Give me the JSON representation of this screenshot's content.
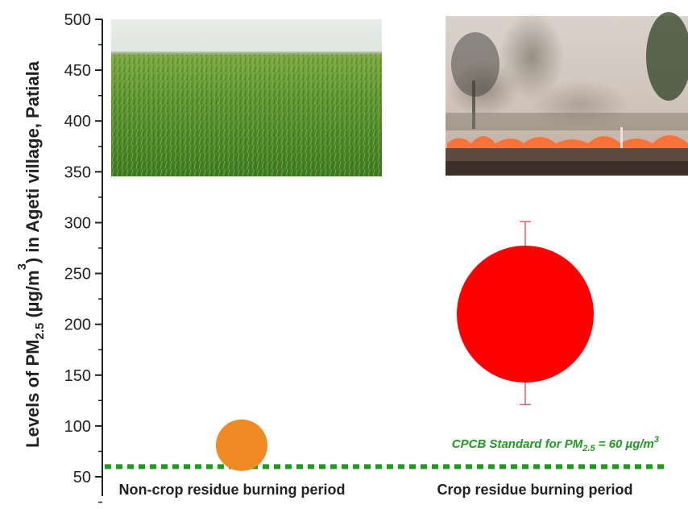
{
  "chart_data": {
    "type": "scatter",
    "ylabel": {
      "prefix": "Levels of PM",
      "sub": "2.5",
      "mid": "  (µg/m",
      "sup": "3",
      "suffix": ") in Ageti village, Patiala"
    },
    "ylim": [
      50,
      500
    ],
    "yticks": [
      "50",
      "100",
      "150",
      "200",
      "250",
      "300",
      "350",
      "400",
      "450",
      "500"
    ],
    "categories": [
      "Non-crop residue burning period",
      "Crop residue burning period"
    ],
    "points": [
      {
        "category": "Non-crop residue burning period",
        "y": 81,
        "color": "#f08a24"
      },
      {
        "category": "Crop residue burning period",
        "y": 210,
        "error_low": 121,
        "error_high": 301,
        "color": "#ff0000"
      }
    ],
    "reference_line": {
      "y": 60,
      "color": "#1f9a1f",
      "style": "dotted",
      "label": {
        "prefix": "CPCB Standard for PM",
        "sub": "2.5",
        "mid": " = 60 ",
        "unit_mu": "µ",
        "unit_rest": "g/m",
        "sup": "3"
      }
    },
    "grid": false,
    "photos": [
      {
        "icon": "wheat-field-photo",
        "description_hidden": true
      },
      {
        "icon": "crop-fire-photo",
        "description_hidden": true
      }
    ]
  }
}
